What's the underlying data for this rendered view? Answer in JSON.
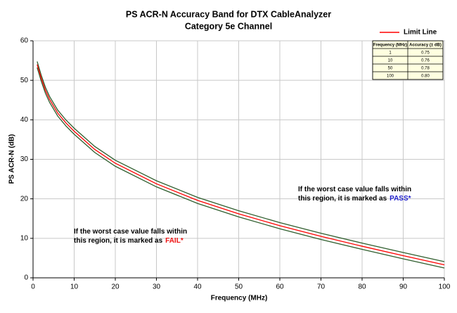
{
  "chart_data": {
    "type": "line",
    "title": "PS ACR-N Accuracy Band for DTX CableAnalyzer",
    "subtitle": "Category 5e Channel",
    "x_label": "Frequency (MHz)",
    "y_label": "PS ACR-N (dB)",
    "x": [
      1,
      2,
      3,
      4,
      6,
      8,
      10,
      15,
      20,
      30,
      40,
      50,
      60,
      70,
      80,
      90,
      100
    ],
    "series": [
      {
        "name": "Limit Line",
        "color": "#ff0000",
        "values": [
          54,
          50.5,
          47.5,
          45.2,
          41.7,
          39.2,
          37.1,
          32.5,
          29,
          23.8,
          19.6,
          16.2,
          13.2,
          10.5,
          8,
          5.6,
          3.3
        ]
      },
      {
        "color": "#2f5f2f",
        "values": [
          54.75,
          51.25,
          48.25,
          45.95,
          42.45,
          39.95,
          37.86,
          33.26,
          29.76,
          24.57,
          20.37,
          16.98,
          13.98,
          11.29,
          8.79,
          6.4,
          4.1
        ]
      },
      {
        "color": "#2f5f2f",
        "values": [
          53.25,
          49.75,
          46.75,
          44.45,
          40.95,
          38.45,
          36.34,
          31.74,
          28.24,
          23.03,
          18.83,
          15.42,
          12.42,
          9.71,
          7.21,
          4.8,
          2.5
        ]
      }
    ],
    "xlim": [
      0,
      100
    ],
    "xticks": [
      0,
      10,
      20,
      30,
      40,
      50,
      60,
      70,
      80,
      90,
      100
    ],
    "ylim": [
      0,
      60
    ],
    "yticks": [
      0,
      10,
      20,
      30,
      40,
      50,
      60
    ],
    "grid": true,
    "legend": "top-right",
    "inset_table": {
      "columns": [
        "Frequency (MHz)",
        "Accuracy (± dB)"
      ],
      "rows": [
        [
          "1",
          "0.75"
        ],
        [
          "10",
          "0.76"
        ],
        [
          "50",
          "0.78"
        ],
        [
          "100",
          "0.80"
        ]
      ]
    },
    "annotations": [
      {
        "lines": [
          "If the worst case value falls within",
          "this region, it is marked as"
        ],
        "highlight": "PASS*",
        "color": "#2222cc"
      },
      {
        "lines": [
          "If the worst case value falls within",
          "this region, it is marked as"
        ],
        "highlight": "FAIL*",
        "color": "#ee1111"
      }
    ]
  }
}
